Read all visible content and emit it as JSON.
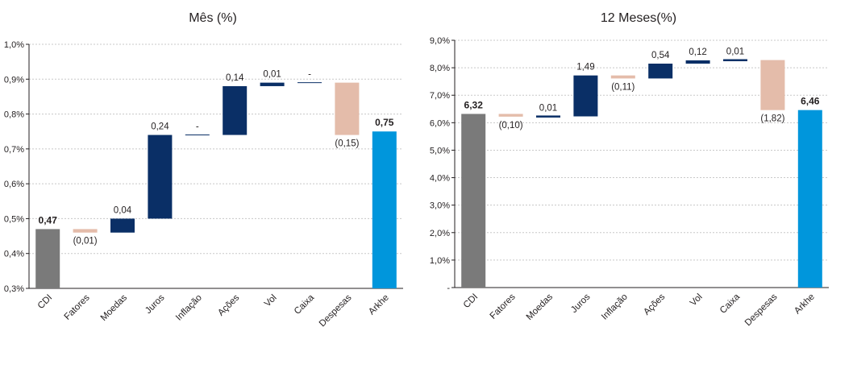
{
  "colors": {
    "total_gray": "#7a7a7a",
    "positive": "#0a2f66",
    "negative": "#e4bcaa",
    "final": "#0096dc"
  },
  "chart_data": [
    {
      "type": "waterfall",
      "title": "Mês (%)",
      "categories": [
        "CDI",
        "Fatores",
        "Moedas",
        "Juros",
        "Inflação",
        "Ações",
        "Vol",
        "Caixa",
        "Despesas",
        "Arkhe"
      ],
      "kinds": [
        "total",
        "negative",
        "positive",
        "positive",
        "zero",
        "positive",
        "positive",
        "zero",
        "negative",
        "final"
      ],
      "values": [
        0.47,
        -0.01,
        0.04,
        0.24,
        0,
        0.14,
        0.01,
        0,
        -0.15,
        0.75
      ],
      "data_labels": [
        "0,47",
        "(0,01)",
        "0,04",
        "0,24",
        "-",
        "0,14",
        "0,01",
        "-",
        "(0,15)",
        "0,75"
      ],
      "label_positions": [
        "above",
        "below",
        "above",
        "above",
        "above",
        "above",
        "above",
        "above",
        "below",
        "above"
      ],
      "ylim": [
        0.3,
        1.0
      ],
      "yticks": [
        0.3,
        0.4,
        0.5,
        0.6,
        0.7,
        0.8,
        0.9,
        1.0
      ],
      "ytick_labels": [
        "0,3%",
        "0,4%",
        "0,5%",
        "0,6%",
        "0,7%",
        "0,8%",
        "0,9%",
        "1,0%"
      ],
      "grid": true
    },
    {
      "type": "waterfall",
      "title": "12 Meses(%)",
      "categories": [
        "CDI",
        "Fatores",
        "Moedas",
        "Juros",
        "Inflação",
        "Ações",
        "Vol",
        "Caixa",
        "Despesas",
        "Arkhe"
      ],
      "kinds": [
        "total",
        "negative",
        "positive",
        "positive",
        "negative",
        "positive",
        "positive",
        "positive",
        "negative",
        "final"
      ],
      "values": [
        6.32,
        -0.1,
        0.01,
        1.49,
        -0.11,
        0.54,
        0.12,
        0.01,
        -1.82,
        6.46
      ],
      "data_labels": [
        "6,32",
        "(0,10)",
        "0,01",
        "1,49",
        "(0,11)",
        "0,54",
        "0,12",
        "0,01",
        "(1,82)",
        "6,46"
      ],
      "label_positions": [
        "above",
        "below",
        "above",
        "above",
        "below",
        "above",
        "above",
        "above",
        "below",
        "above"
      ],
      "ylim": [
        0,
        9.0
      ],
      "yticks": [
        0,
        1,
        2,
        3,
        4,
        5,
        6,
        7,
        8,
        9
      ],
      "ytick_labels": [
        "-",
        "1,0%",
        "2,0%",
        "3,0%",
        "4,0%",
        "5,0%",
        "6,0%",
        "7,0%",
        "8,0%",
        "9,0%"
      ],
      "grid": true
    }
  ]
}
